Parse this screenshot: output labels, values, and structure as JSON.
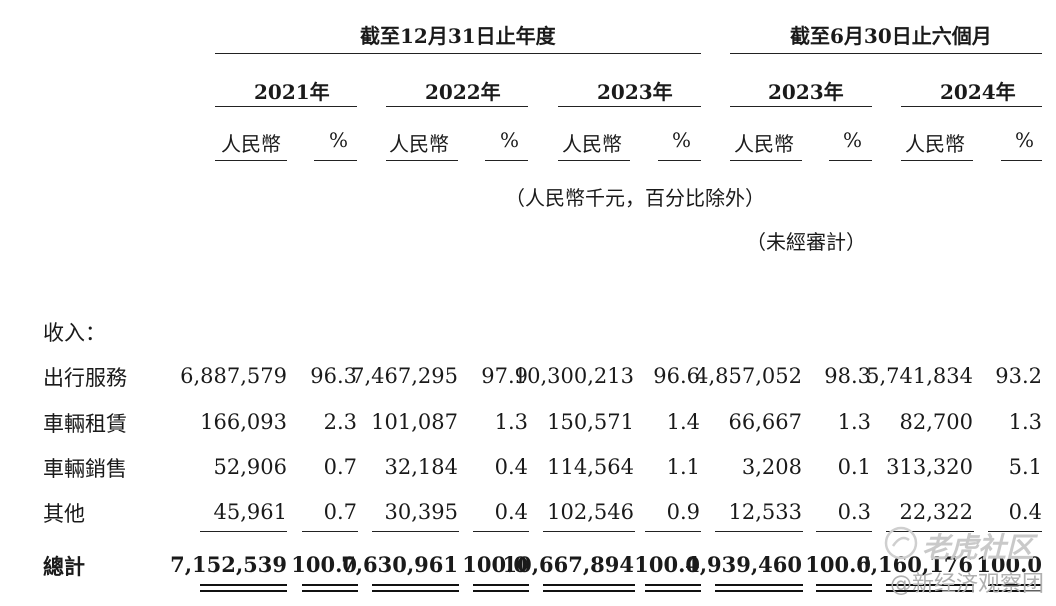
{
  "header": {
    "group1": "截至12月31日止年度",
    "group2": "截至6月30日止六個月",
    "years": [
      "2021年",
      "2022年",
      "2023年",
      "2023年",
      "2024年"
    ],
    "col_rmb": "人民幣",
    "col_pct": "%",
    "unit_note": "（人民幣千元，百分比除外）",
    "unaudited": "（未經審計）"
  },
  "section_label": "收入：",
  "rows": [
    {
      "label": "出行服務",
      "values": [
        "6,887,579",
        "96.3",
        "7,467,295",
        "97.9",
        "10,300,213",
        "96.6",
        "4,857,052",
        "98.3",
        "5,741,834",
        "93.2"
      ]
    },
    {
      "label": "車輛租賃",
      "values": [
        "166,093",
        "2.3",
        "101,087",
        "1.3",
        "150,571",
        "1.4",
        "66,667",
        "1.3",
        "82,700",
        "1.3"
      ]
    },
    {
      "label": "車輛銷售",
      "values": [
        "52,906",
        "0.7",
        "32,184",
        "0.4",
        "114,564",
        "1.1",
        "3,208",
        "0.1",
        "313,320",
        "5.1"
      ]
    },
    {
      "label": "其他",
      "values": [
        "45,961",
        "0.7",
        "30,395",
        "0.4",
        "102,546",
        "0.9",
        "12,533",
        "0.3",
        "22,322",
        "0.4"
      ]
    }
  ],
  "total": {
    "label": "總計",
    "values": [
      "7,152,539",
      "100.0",
      "7,630,961",
      "100.0",
      "10,667,894",
      "100.0",
      "4,939,460",
      "100.0",
      "6,160,176",
      "100.0"
    ]
  },
  "watermark": {
    "line1": "老虎社区",
    "line2": "@新经济观察团"
  }
}
